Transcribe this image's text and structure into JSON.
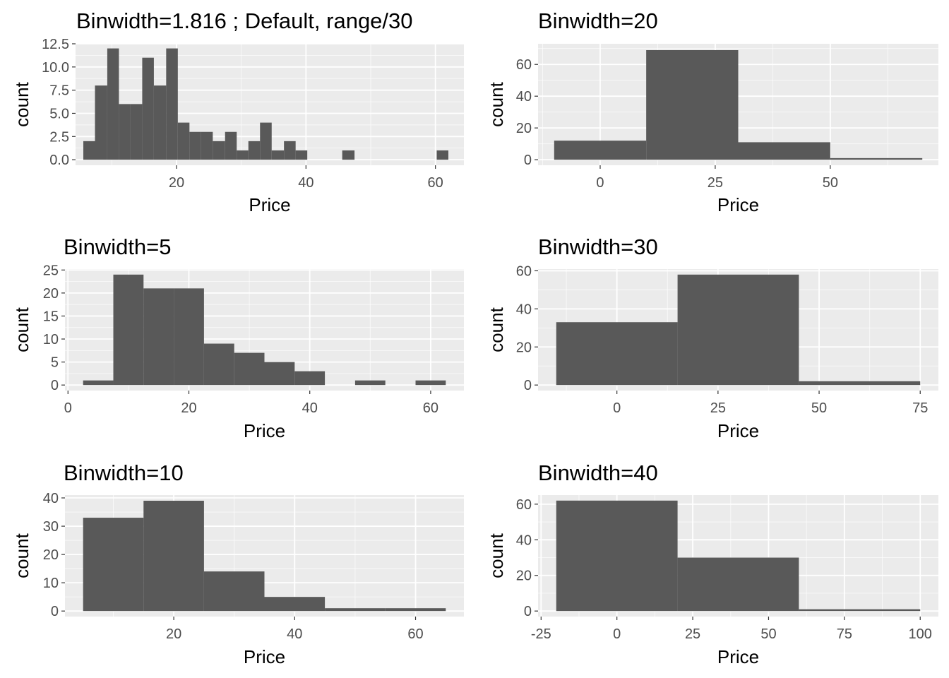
{
  "colors": {
    "panel_bg": "#ebebeb",
    "grid_major": "#ffffff",
    "bar_fill": "#595959",
    "tick_text": "#4d4d4d",
    "tick_mark": "#333333"
  },
  "chart_data": [
    {
      "type": "bar",
      "title": "Binwidth=1.816 ; Default, range/30",
      "xlabel": "Price",
      "ylabel": "count",
      "xlim": [
        4.4,
        64.4
      ],
      "ylim": [
        -0.6,
        12.5
      ],
      "xticks": [
        20,
        40,
        60
      ],
      "yticks": [
        0.0,
        2.5,
        5.0,
        7.5,
        10.0,
        12.5
      ],
      "ytick_labels": [
        "0.0",
        "2.5",
        "5.0",
        "7.5",
        "10.0",
        "12.5"
      ],
      "bins": [
        {
          "x0": 5.6,
          "x1": 7.4,
          "count": 2
        },
        {
          "x0": 7.4,
          "x1": 9.3,
          "count": 8
        },
        {
          "x0": 9.3,
          "x1": 11.1,
          "count": 12
        },
        {
          "x0": 11.1,
          "x1": 12.9,
          "count": 6
        },
        {
          "x0": 12.9,
          "x1": 14.7,
          "count": 6
        },
        {
          "x0": 14.7,
          "x1": 16.5,
          "count": 11
        },
        {
          "x0": 16.5,
          "x1": 18.4,
          "count": 8
        },
        {
          "x0": 18.4,
          "x1": 20.2,
          "count": 12
        },
        {
          "x0": 20.2,
          "x1": 22.0,
          "count": 4
        },
        {
          "x0": 22.0,
          "x1": 23.8,
          "count": 3
        },
        {
          "x0": 23.8,
          "x1": 25.6,
          "count": 3
        },
        {
          "x0": 25.6,
          "x1": 27.5,
          "count": 2
        },
        {
          "x0": 27.5,
          "x1": 29.3,
          "count": 3
        },
        {
          "x0": 29.3,
          "x1": 31.1,
          "count": 1
        },
        {
          "x0": 31.1,
          "x1": 32.9,
          "count": 2
        },
        {
          "x0": 32.9,
          "x1": 34.7,
          "count": 4
        },
        {
          "x0": 34.7,
          "x1": 36.6,
          "count": 1
        },
        {
          "x0": 36.6,
          "x1": 38.4,
          "count": 2
        },
        {
          "x0": 38.4,
          "x1": 40.2,
          "count": 1
        },
        {
          "x0": 45.6,
          "x1": 47.5,
          "count": 1
        },
        {
          "x0": 60.2,
          "x1": 62.0,
          "count": 1
        }
      ]
    },
    {
      "type": "bar",
      "title": "Binwidth=20",
      "xlabel": "Price",
      "ylabel": "count",
      "xlim": [
        -13.5,
        73.5
      ],
      "ylim": [
        -3.5,
        73
      ],
      "xticks": [
        0,
        25,
        50
      ],
      "yticks": [
        0,
        20,
        40,
        60
      ],
      "ytick_labels": [
        "0",
        "20",
        "40",
        "60"
      ],
      "bins": [
        {
          "x0": -10,
          "x1": 10,
          "count": 12
        },
        {
          "x0": 10,
          "x1": 30,
          "count": 69
        },
        {
          "x0": 30,
          "x1": 50,
          "count": 11
        },
        {
          "x0": 50,
          "x1": 70,
          "count": 1
        }
      ]
    },
    {
      "type": "bar",
      "title": "Binwidth=5",
      "xlabel": "Price",
      "ylabel": "count",
      "xlim": [
        -0.5,
        65.5
      ],
      "ylim": [
        -1.2,
        25.2
      ],
      "xticks": [
        0,
        20,
        40,
        60
      ],
      "yticks": [
        0,
        5,
        10,
        15,
        20,
        25
      ],
      "ytick_labels": [
        "0",
        "5",
        "10",
        "15",
        "20",
        "25"
      ],
      "bins": [
        {
          "x0": 2.5,
          "x1": 7.5,
          "count": 1
        },
        {
          "x0": 7.5,
          "x1": 12.5,
          "count": 24
        },
        {
          "x0": 12.5,
          "x1": 17.5,
          "count": 21
        },
        {
          "x0": 17.5,
          "x1": 22.5,
          "count": 21
        },
        {
          "x0": 22.5,
          "x1": 27.5,
          "count": 9
        },
        {
          "x0": 27.5,
          "x1": 32.5,
          "count": 7
        },
        {
          "x0": 32.5,
          "x1": 37.5,
          "count": 5
        },
        {
          "x0": 37.5,
          "x1": 42.5,
          "count": 3
        },
        {
          "x0": 47.5,
          "x1": 52.5,
          "count": 1
        },
        {
          "x0": 57.5,
          "x1": 62.5,
          "count": 1
        }
      ]
    },
    {
      "type": "bar",
      "title": "Binwidth=30",
      "xlabel": "Price",
      "ylabel": "count",
      "xlim": [
        -19.5,
        79.5
      ],
      "ylim": [
        -2.9,
        60.9
      ],
      "xticks": [
        0,
        25,
        50,
        75
      ],
      "yticks": [
        0,
        20,
        40,
        60
      ],
      "ytick_labels": [
        "0",
        "20",
        "40",
        "60"
      ],
      "bins": [
        {
          "x0": -15,
          "x1": 15,
          "count": 33
        },
        {
          "x0": 15,
          "x1": 45,
          "count": 58
        },
        {
          "x0": 45,
          "x1": 75,
          "count": 2
        }
      ]
    },
    {
      "type": "bar",
      "title": "Binwidth=10",
      "xlabel": "Price",
      "ylabel": "count",
      "xlim": [
        2,
        68
      ],
      "ylim": [
        -1.95,
        41
      ],
      "xticks": [
        20,
        40,
        60
      ],
      "yticks": [
        0,
        10,
        20,
        30,
        40
      ],
      "ytick_labels": [
        "0",
        "10",
        "20",
        "30",
        "40"
      ],
      "bins": [
        {
          "x0": 5,
          "x1": 15,
          "count": 33
        },
        {
          "x0": 15,
          "x1": 25,
          "count": 39
        },
        {
          "x0": 25,
          "x1": 35,
          "count": 14
        },
        {
          "x0": 35,
          "x1": 45,
          "count": 5
        },
        {
          "x0": 45,
          "x1": 55,
          "count": 1
        },
        {
          "x0": 55,
          "x1": 65,
          "count": 1
        }
      ]
    },
    {
      "type": "bar",
      "title": "Binwidth=40",
      "xlabel": "Price",
      "ylabel": "count",
      "xlim": [
        -26,
        106
      ],
      "ylim": [
        -3.1,
        65.1
      ],
      "xticks": [
        -25,
        0,
        25,
        50,
        75,
        100
      ],
      "yticks": [
        0,
        20,
        40,
        60
      ],
      "ytick_labels": [
        "0",
        "20",
        "40",
        "60"
      ],
      "bins": [
        {
          "x0": -20,
          "x1": 20,
          "count": 62
        },
        {
          "x0": 20,
          "x1": 60,
          "count": 30
        },
        {
          "x0": 60,
          "x1": 100,
          "count": 1
        }
      ]
    }
  ]
}
